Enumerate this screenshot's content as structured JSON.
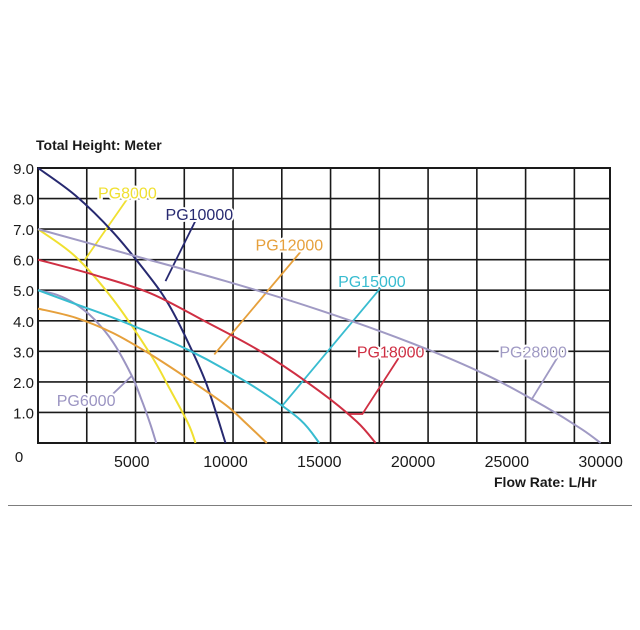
{
  "chart_data": {
    "type": "line",
    "ylabel": "Total Height:  Meter",
    "xlabel": "Flow Rate:  L/Hr",
    "xlim": [
      0,
      30500
    ],
    "ylim": [
      0,
      9
    ],
    "grid": true,
    "x_tick_values": [
      0,
      2600,
      5200,
      7800,
      10400,
      13000,
      15600,
      18200,
      20800,
      23400,
      26000,
      28600,
      31200
    ],
    "x_tick_labels": [
      {
        "value": 5000,
        "label": "5000"
      },
      {
        "value": 10000,
        "label": "10000"
      },
      {
        "value": 15000,
        "label": "15000"
      },
      {
        "value": 20000,
        "label": "20000"
      },
      {
        "value": 25000,
        "label": "25000"
      },
      {
        "value": 30000,
        "label": "30000"
      }
    ],
    "origin_label": "0",
    "y_ticks": [
      {
        "value": 1,
        "label": "1.0"
      },
      {
        "value": 2,
        "label": "2.0"
      },
      {
        "value": 3,
        "label": "3.0"
      },
      {
        "value": 4,
        "label": "4.0"
      },
      {
        "value": 5,
        "label": "5.0"
      },
      {
        "value": 6,
        "label": "6.0"
      },
      {
        "value": 7,
        "label": "7.0"
      },
      {
        "value": 8,
        "label": "8.0"
      },
      {
        "value": 9,
        "label": "9.0"
      }
    ],
    "series": [
      {
        "name": "PG6000",
        "color": "#9b94c2",
        "x": [
          0,
          1000,
          2000,
          3000,
          4000,
          5000,
          5500,
          6000,
          6300
        ],
        "y": [
          5.0,
          4.85,
          4.55,
          4.05,
          3.3,
          2.2,
          1.45,
          0.6,
          0
        ],
        "label_at": [
          1000,
          1.4
        ],
        "leader": [
          [
            3900,
            1.55
          ],
          [
            5000,
            2.2
          ]
        ]
      },
      {
        "name": "PG8000",
        "color": "#f0e030",
        "x": [
          0,
          2000,
          4000,
          6000,
          7000,
          8000,
          8400
        ],
        "y": [
          7.0,
          6.1,
          4.7,
          2.9,
          1.8,
          0.65,
          0
        ],
        "label_at": [
          3200,
          8.2
        ],
        "leader": [
          [
            2500,
            6.0
          ],
          [
            5000,
            8.2
          ]
        ]
      },
      {
        "name": "PG10000",
        "color": "#272970",
        "x": [
          0,
          2000,
          4000,
          6000,
          7000,
          8000,
          9000,
          10000
        ],
        "y": [
          9.0,
          8.1,
          6.9,
          5.4,
          4.5,
          3.3,
          1.9,
          0
        ],
        "label_at": [
          6800,
          7.5
        ],
        "leader": [
          [
            6800,
            5.3
          ],
          [
            8500,
            7.4
          ]
        ]
      },
      {
        "name": "PG12000",
        "color": "#e6a03c",
        "x": [
          0,
          2000,
          4000,
          6000,
          8000,
          10000,
          11000,
          12200
        ],
        "y": [
          4.4,
          4.1,
          3.6,
          2.9,
          2.1,
          1.25,
          0.7,
          0
        ],
        "label_at": [
          11600,
          6.5
        ],
        "leader": [
          [
            9400,
            2.9
          ],
          [
            14200,
            6.4
          ]
        ]
      },
      {
        "name": "PG15000",
        "color": "#38bcd0",
        "x": [
          0,
          2000,
          4000,
          6000,
          8000,
          10000,
          12000,
          14000,
          15000
        ],
        "y": [
          5.0,
          4.55,
          4.1,
          3.6,
          3.05,
          2.4,
          1.65,
          0.75,
          0
        ],
        "label_at": [
          16000,
          5.3
        ],
        "leader": [
          [
            13000,
            1.2
          ],
          [
            18300,
            5.1
          ]
        ]
      },
      {
        "name": "PG18000",
        "color": "#cf2f43",
        "x": [
          0,
          3000,
          6000,
          9000,
          12000,
          15000,
          17000,
          18000
        ],
        "y": [
          6.0,
          5.5,
          4.9,
          3.95,
          2.95,
          1.7,
          0.7,
          0
        ],
        "label_at": [
          17000,
          3.0
        ],
        "leader": [
          [
            16500,
            0.95
          ],
          [
            17300,
            0.95
          ],
          [
            19300,
            2.85
          ]
        ]
      },
      {
        "name": "PG28000",
        "color": "#a09ac4",
        "x": [
          0,
          5000,
          10000,
          15000,
          20000,
          24000,
          27000,
          29000,
          30000
        ],
        "y": [
          7.0,
          6.15,
          5.3,
          4.35,
          3.25,
          2.2,
          1.2,
          0.45,
          0
        ],
        "label_at": [
          24600,
          3.0
        ],
        "leader": [
          [
            26300,
            1.4
          ],
          [
            27700,
            2.8
          ]
        ]
      }
    ]
  }
}
